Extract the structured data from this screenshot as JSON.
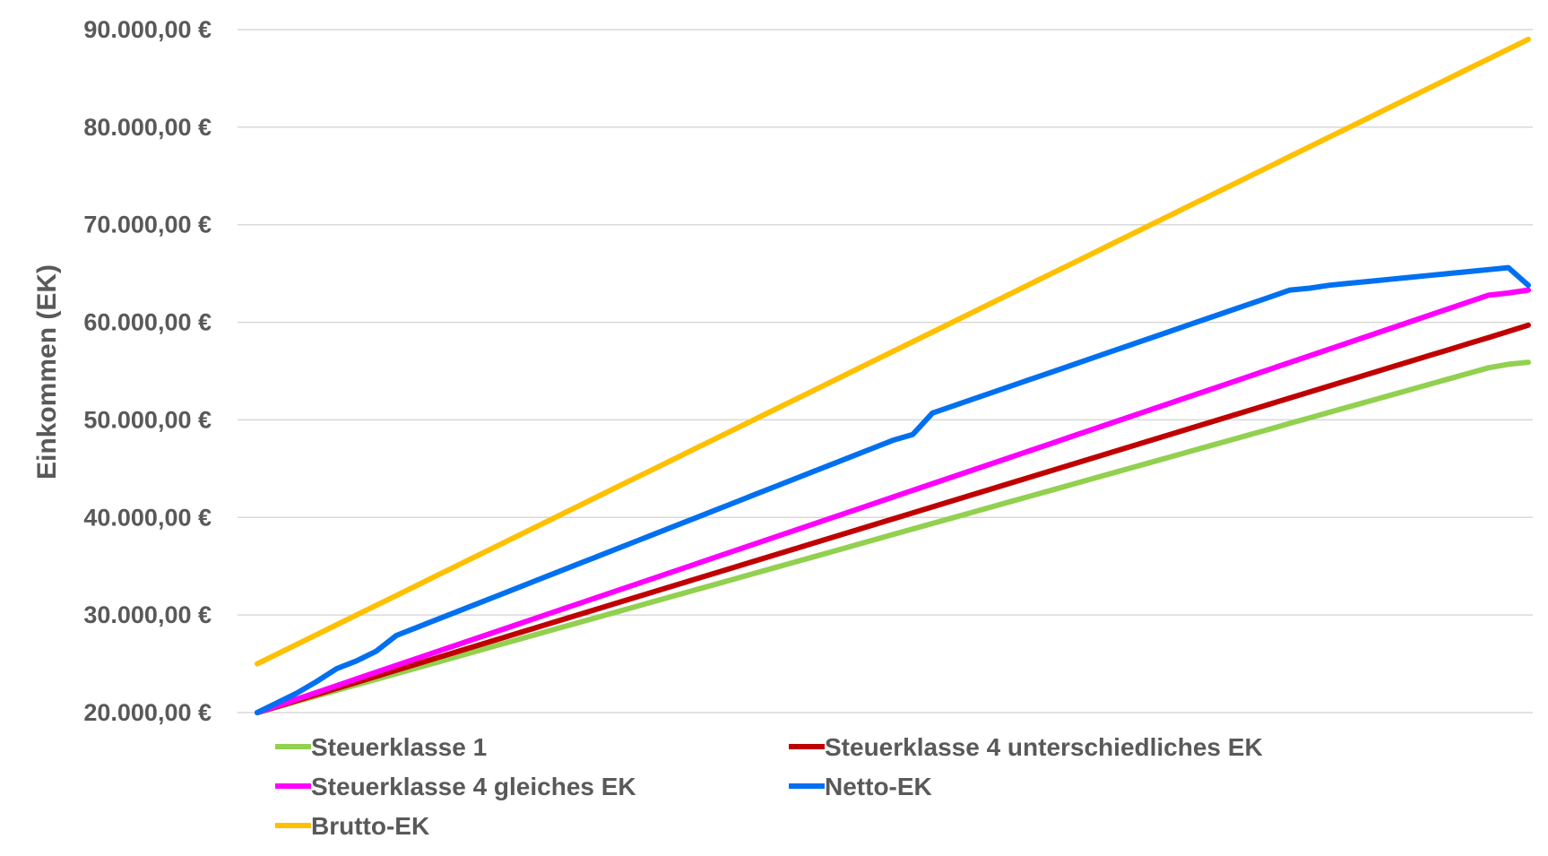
{
  "chart_data": {
    "type": "line",
    "title": "",
    "xlabel": "",
    "ylabel": "Einkommen (EK)",
    "ylim": [
      20000,
      90000
    ],
    "y_ticks": [
      {
        "value": 20000,
        "label": "20.000,00 €"
      },
      {
        "value": 30000,
        "label": "30.000,00 €"
      },
      {
        "value": 40000,
        "label": "40.000,00 €"
      },
      {
        "value": 50000,
        "label": "50.000,00 €"
      },
      {
        "value": 60000,
        "label": "60.000,00 €"
      },
      {
        "value": 70000,
        "label": "70.000,00 €"
      },
      {
        "value": 80000,
        "label": "80.000,00 €"
      },
      {
        "value": 90000,
        "label": "90.000,00 €"
      }
    ],
    "grid": true,
    "legend_position": "bottom",
    "x": [
      25000,
      26000,
      27000,
      28000,
      29000,
      30000,
      31000,
      32000,
      33000,
      34000,
      35000,
      36000,
      37000,
      38000,
      39000,
      40000,
      41000,
      42000,
      43000,
      44000,
      45000,
      46000,
      47000,
      48000,
      49000,
      50000,
      51000,
      52000,
      53000,
      54000,
      55000,
      56000,
      57000,
      58000,
      59000,
      60000,
      61000,
      62000,
      63000,
      64000,
      65000,
      66000,
      67000,
      68000,
      69000,
      70000,
      71000,
      72000,
      73000,
      74000,
      75000,
      76000,
      77000,
      78000,
      79000,
      80000,
      81000,
      82000,
      83000,
      84000,
      85000,
      86000,
      87000,
      88000,
      89000
    ],
    "series": [
      {
        "name": "Steuerklasse 1",
        "color": "#92d050",
        "values": [
          20000,
          20570,
          21140,
          21710,
          22280,
          22850,
          23420,
          23990,
          24560,
          25130,
          25700,
          26270,
          26840,
          27410,
          27980,
          28550,
          29120,
          29690,
          30260,
          30830,
          31400,
          31970,
          32540,
          33110,
          33680,
          34250,
          34820,
          35390,
          35960,
          36530,
          37100,
          37670,
          38240,
          38810,
          39380,
          39950,
          40520,
          41090,
          41660,
          42230,
          42800,
          43370,
          43940,
          44510,
          45080,
          45650,
          46220,
          46790,
          47360,
          47930,
          48500,
          49070,
          49640,
          50210,
          50780,
          51350,
          51920,
          52490,
          53060,
          53630,
          54200,
          54770,
          55340,
          55700,
          55900
        ]
      },
      {
        "name": "Steuerklasse 4 unterschiedliches EK",
        "color": "#c00000",
        "values": [
          20000,
          20620,
          21240,
          21860,
          22480,
          23100,
          23720,
          24340,
          24960,
          25580,
          26200,
          26820,
          27440,
          28060,
          28680,
          29300,
          29920,
          30540,
          31160,
          31780,
          32400,
          33020,
          33640,
          34260,
          34880,
          35500,
          36120,
          36740,
          37360,
          37980,
          38600,
          39220,
          39840,
          40460,
          41080,
          41700,
          42320,
          42940,
          43560,
          44180,
          44800,
          45420,
          46040,
          46660,
          47280,
          47900,
          48520,
          49140,
          49760,
          50380,
          51000,
          51620,
          52240,
          52860,
          53480,
          54100,
          54720,
          55340,
          55960,
          56580,
          57200,
          57820,
          58440,
          59060,
          59700
        ]
      },
      {
        "name": "Steuerklasse 4 gleiches EK",
        "color": "#ff00ff",
        "values": [
          20000,
          20690,
          21380,
          22070,
          22760,
          23450,
          24140,
          24830,
          25520,
          26210,
          26900,
          27590,
          28280,
          28970,
          29660,
          30350,
          31040,
          31730,
          32420,
          33110,
          33800,
          34490,
          35180,
          35870,
          36560,
          37250,
          37940,
          38630,
          39320,
          40010,
          40700,
          41390,
          42080,
          42770,
          43460,
          44150,
          44840,
          45530,
          46220,
          46910,
          47600,
          48290,
          48980,
          49670,
          50360,
          51050,
          51740,
          52430,
          53120,
          53810,
          54500,
          55190,
          55880,
          56570,
          57260,
          57950,
          58640,
          59330,
          60020,
          60710,
          61400,
          62090,
          62780,
          63000,
          63300
        ]
      },
      {
        "name": "Netto-EK",
        "color": "#0070f0",
        "values": [
          20000,
          21000,
          22000,
          23200,
          24500,
          25300,
          26300,
          27900,
          28700,
          29500,
          30300,
          31100,
          31900,
          32700,
          33500,
          34300,
          35100,
          35900,
          36700,
          37500,
          38300,
          39100,
          39900,
          40700,
          41500,
          42300,
          43100,
          43900,
          44700,
          45500,
          46300,
          47100,
          47900,
          48500,
          50700,
          51400,
          52100,
          52800,
          53500,
          54200,
          54900,
          55600,
          56300,
          57000,
          57700,
          58400,
          59100,
          59800,
          60500,
          61200,
          61900,
          62600,
          63300,
          63500,
          63800,
          64000,
          64200,
          64400,
          64600,
          64800,
          65000,
          65200,
          65400,
          65600,
          63800
        ]
      },
      {
        "name": "Brutto-EK",
        "color": "#ffc000",
        "values": [
          25000,
          26000,
          27000,
          28000,
          29000,
          30000,
          31000,
          32000,
          33000,
          34000,
          35000,
          36000,
          37000,
          38000,
          39000,
          40000,
          41000,
          42000,
          43000,
          44000,
          45000,
          46000,
          47000,
          48000,
          49000,
          50000,
          51000,
          52000,
          53000,
          54000,
          55000,
          56000,
          57000,
          58000,
          59000,
          60000,
          61000,
          62000,
          63000,
          64000,
          65000,
          66000,
          67000,
          68000,
          69000,
          70000,
          71000,
          72000,
          73000,
          74000,
          75000,
          76000,
          77000,
          78000,
          79000,
          80000,
          81000,
          82000,
          83000,
          84000,
          85000,
          86000,
          87000,
          88000,
          89000
        ]
      }
    ]
  }
}
